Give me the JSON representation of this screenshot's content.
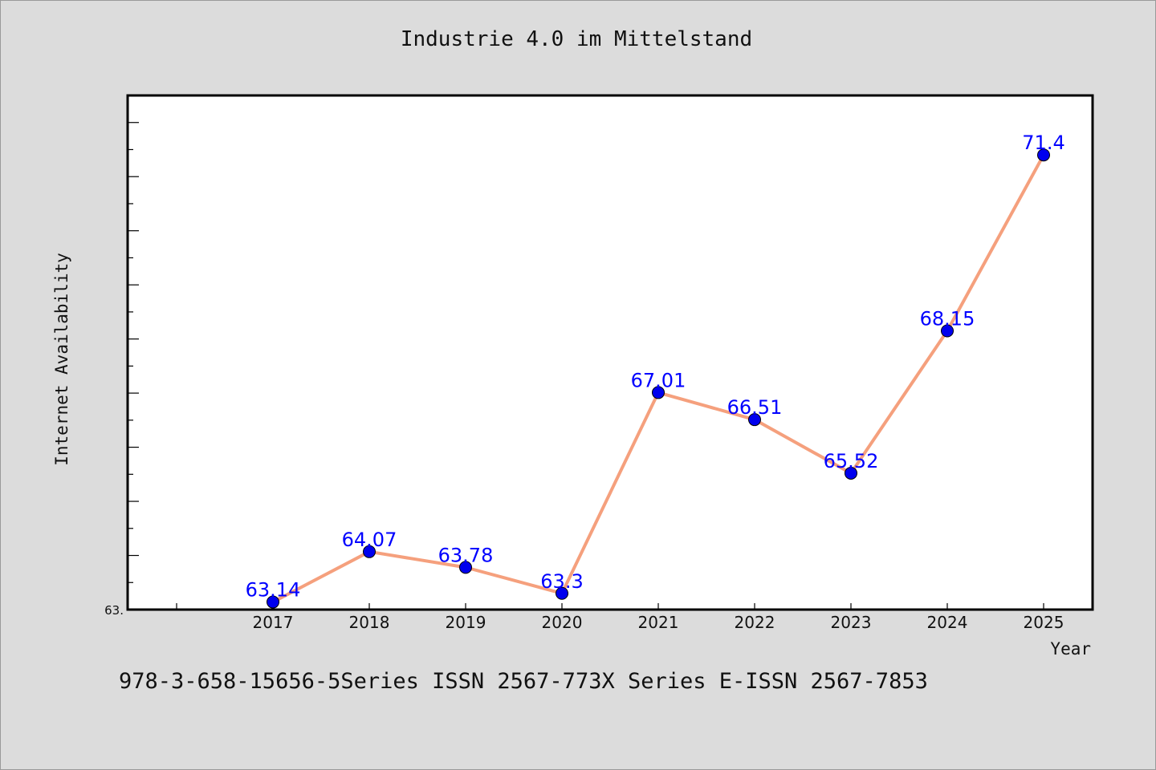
{
  "chart_data": {
    "type": "line",
    "title": "Industrie 4.0 im Mittelstand",
    "xlabel": "Year",
    "ylabel": "Internet Availability",
    "categories": [
      "2017",
      "2018",
      "2019",
      "2020",
      "2021",
      "2022",
      "2023",
      "2024",
      "2025"
    ],
    "series": [
      {
        "values": [
          63.14,
          64.07,
          63.78,
          63.3,
          67.01,
          66.51,
          65.52,
          68.15,
          71.4
        ],
        "value_labels": [
          "63.14",
          "64.07",
          "63.78",
          "63.3",
          "67.01",
          "66.51",
          "65.52",
          "68.15",
          "71.4"
        ],
        "line_color": "#f5a07d",
        "marker_color": "#0000ee"
      }
    ],
    "ylim": [
      63.0,
      72.5
    ],
    "y_min_tick_label": "63.",
    "grid": false,
    "legend": "none"
  },
  "footer": "978-3-658-15656-5Series ISSN 2567-773X Series E-ISSN 2567-7853"
}
